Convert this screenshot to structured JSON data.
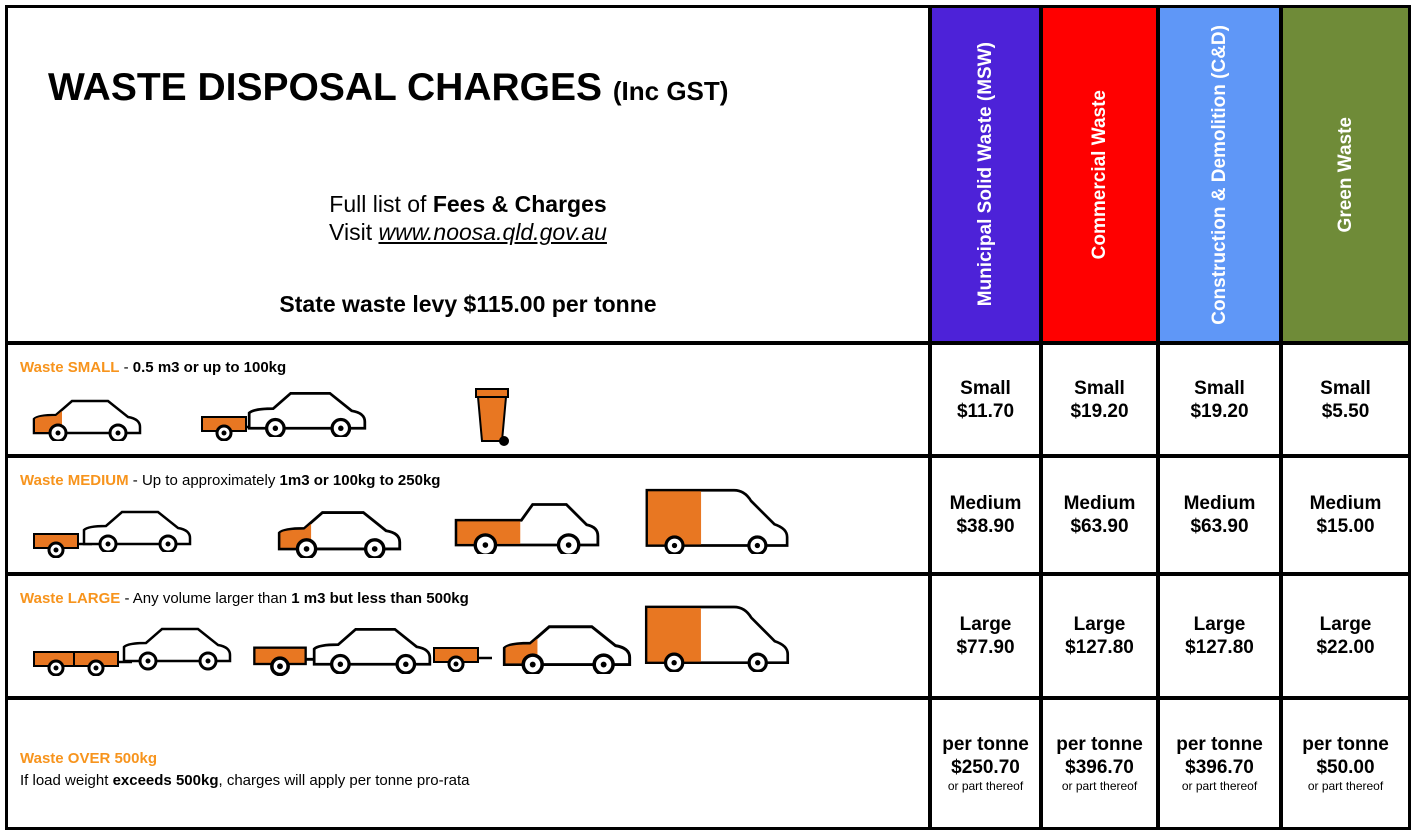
{
  "header": {
    "title": "WASTE DISPOSAL CHARGES",
    "title_suffix": "(Inc GST)",
    "fees_prefix": "Full list of ",
    "fees_bold": "Fees & Charges",
    "visit_prefix": "Visit ",
    "url": "www.noosa.qld.gov.au",
    "levy": "State waste levy $115.00 per tonne"
  },
  "columns": [
    "Municipal Solid Waste (MSW)",
    "Commercial Waste",
    "Construction & Demolition (C&D)",
    "Green Waste"
  ],
  "rows": [
    {
      "tag": "Waste SMALL",
      "text": " - ",
      "bold": "0.5 m3 or up to 100kg",
      "cells": [
        {
          "label": "Small",
          "price": "$11.70"
        },
        {
          "label": "Small",
          "price": "$19.20"
        },
        {
          "label": "Small",
          "price": "$19.20"
        },
        {
          "label": "Small",
          "price": "$5.50"
        }
      ]
    },
    {
      "tag": "Waste MEDIUM",
      "text": " - Up to approximately ",
      "bold": "1m3 or 100kg to 250kg",
      "cells": [
        {
          "label": "Medium",
          "price": "$38.90"
        },
        {
          "label": "Medium",
          "price": "$63.90"
        },
        {
          "label": "Medium",
          "price": "$63.90"
        },
        {
          "label": "Medium",
          "price": "$15.00"
        }
      ]
    },
    {
      "tag": "Waste LARGE",
      "text": " - Any volume larger than ",
      "bold": "1 m3 but less than 500kg",
      "cells": [
        {
          "label": "Large",
          "price": "$77.90"
        },
        {
          "label": "Large",
          "price": "$127.80"
        },
        {
          "label": "Large",
          "price": "$127.80"
        },
        {
          "label": "Large",
          "price": "$22.00"
        }
      ]
    },
    {
      "tag": "Waste OVER 500kg",
      "line2_prefix": "If load weight ",
      "line2_bold": "exceeds 500kg",
      "line2_suffix": ", charges will apply per tonne pro-rata",
      "cells": [
        {
          "label": "per tonne",
          "price": "$250.70",
          "note": "or part thereof"
        },
        {
          "label": "per tonne",
          "price": "$396.70",
          "note": "or part thereof"
        },
        {
          "label": "per tonne",
          "price": "$396.70",
          "note": "or part thereof"
        },
        {
          "label": "per tonne",
          "price": "$50.00",
          "note": "or part thereof"
        }
      ]
    }
  ]
}
